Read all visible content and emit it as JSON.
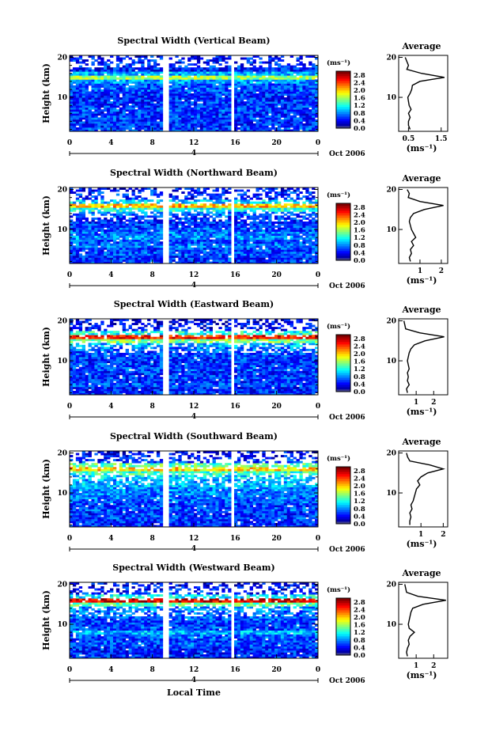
{
  "figure": {
    "xlabel": "Local Time",
    "date_label": "Oct 2006",
    "day_label": "4",
    "ylabel": "Height (km)",
    "avg_title": "Average",
    "unit_label": "(ms⁻¹)"
  },
  "chart_data": [
    {
      "type": "heatmap",
      "title": "Spectral Width (Vertical Beam)",
      "xlabel": "Local Time",
      "ylabel": "Height (km)",
      "x_ticks": [
        "0",
        "4",
        "8",
        "12",
        "16",
        "20",
        "0"
      ],
      "y_ticks": [
        "10",
        "20"
      ],
      "colorbar": {
        "label": "(ms⁻¹)",
        "ticks": [
          "0.0",
          "0.4",
          "0.8",
          "1.2",
          "1.6",
          "2.0",
          "2.4",
          "2.8"
        ],
        "range": [
          0,
          3.0
        ]
      },
      "profile": {
        "title": "Average",
        "xlabel": "(ms⁻¹)",
        "x_ticks": [
          "0.5",
          "1.5"
        ],
        "xlim": [
          0.2,
          1.7
        ],
        "heights": [
          2,
          3,
          4,
          5,
          6,
          7,
          8,
          9,
          10,
          11,
          12,
          13,
          14,
          15,
          16,
          17,
          18,
          19,
          20
        ],
        "values": [
          0.55,
          0.5,
          0.5,
          0.55,
          0.5,
          0.58,
          0.52,
          0.5,
          0.48,
          0.55,
          0.6,
          0.62,
          0.85,
          1.6,
          0.9,
          0.45,
          0.5,
          0.45,
          0.4
        ]
      }
    },
    {
      "type": "heatmap",
      "title": "Spectral Width (Northward Beam)",
      "xlabel": "Local Time",
      "ylabel": "Height (km)",
      "x_ticks": [
        "0",
        "4",
        "8",
        "12",
        "16",
        "20",
        "0"
      ],
      "y_ticks": [
        "10",
        "20"
      ],
      "colorbar": {
        "label": "(ms⁻¹)",
        "ticks": [
          "0.0",
          "0.4",
          "0.8",
          "1.2",
          "1.6",
          "2.0",
          "2.4",
          "2.8"
        ],
        "range": [
          0,
          3.0
        ]
      },
      "profile": {
        "title": "Average",
        "xlabel": "(ms⁻¹)",
        "x_ticks": [
          "1",
          "2"
        ],
        "xlim": [
          0,
          2.3
        ],
        "heights": [
          2,
          3,
          4,
          5,
          6,
          7,
          8,
          9,
          10,
          11,
          12,
          13,
          14,
          15,
          16,
          17,
          18,
          19,
          20
        ],
        "values": [
          0.55,
          0.5,
          0.6,
          0.55,
          0.7,
          0.6,
          0.8,
          0.7,
          0.6,
          0.55,
          0.5,
          0.55,
          0.7,
          1.2,
          2.1,
          1.0,
          0.45,
          0.5,
          0.4
        ]
      }
    },
    {
      "type": "heatmap",
      "title": "Spectral Width (Eastward Beam)",
      "xlabel": "Local Time",
      "ylabel": "Height (km)",
      "x_ticks": [
        "0",
        "4",
        "8",
        "12",
        "16",
        "20",
        "0"
      ],
      "y_ticks": [
        "10",
        "20"
      ],
      "colorbar": {
        "label": "(ms⁻¹)",
        "ticks": [
          "0.0",
          "0.4",
          "0.8",
          "1.2",
          "1.6",
          "2.0",
          "2.4",
          "2.8"
        ],
        "range": [
          0,
          3.0
        ]
      },
      "profile": {
        "title": "Average",
        "xlabel": "(ms⁻¹)",
        "x_ticks": [
          "1",
          "2"
        ],
        "xlim": [
          0,
          2.8
        ],
        "heights": [
          2,
          3,
          4,
          5,
          6,
          7,
          8,
          9,
          10,
          11,
          12,
          13,
          14,
          15,
          16,
          17,
          18,
          19,
          20
        ],
        "values": [
          0.5,
          0.45,
          0.6,
          0.5,
          0.55,
          0.5,
          0.6,
          0.55,
          0.5,
          0.55,
          0.6,
          0.7,
          0.9,
          1.5,
          2.6,
          1.2,
          0.4,
          0.35,
          0.3
        ]
      }
    },
    {
      "type": "heatmap",
      "title": "Spectral Width (Southward Beam)",
      "xlabel": "Local Time",
      "ylabel": "Height (km)",
      "x_ticks": [
        "0",
        "4",
        "8",
        "12",
        "16",
        "20",
        "0"
      ],
      "y_ticks": [
        "10",
        "20"
      ],
      "colorbar": {
        "label": "(ms⁻¹)",
        "ticks": [
          "0.0",
          "0.4",
          "0.8",
          "1.2",
          "1.6",
          "2.0",
          "2.4",
          "2.8"
        ],
        "range": [
          0,
          3.0
        ]
      },
      "profile": {
        "title": "Average",
        "xlabel": "(ms⁻¹)",
        "x_ticks": [
          "1",
          "2"
        ],
        "xlim": [
          0,
          2.2
        ],
        "heights": [
          2,
          3,
          4,
          5,
          6,
          7,
          8,
          9,
          10,
          11,
          12,
          13,
          14,
          15,
          16,
          17,
          18,
          19,
          20
        ],
        "values": [
          0.5,
          0.5,
          0.55,
          0.5,
          0.6,
          0.55,
          0.65,
          0.7,
          0.75,
          0.8,
          0.95,
          0.85,
          1.0,
          1.3,
          2.0,
          1.4,
          0.5,
          0.4,
          0.35
        ]
      }
    },
    {
      "type": "heatmap",
      "title": "Spectral Width (Westward Beam)",
      "xlabel": "Local Time",
      "ylabel": "Height (km)",
      "x_ticks": [
        "0",
        "4",
        "8",
        "12",
        "16",
        "20",
        "0"
      ],
      "y_ticks": [
        "10",
        "20"
      ],
      "colorbar": {
        "label": "(ms⁻¹)",
        "ticks": [
          "0.0",
          "0.4",
          "0.8",
          "1.2",
          "1.6",
          "2.0",
          "2.4",
          "2.8"
        ],
        "range": [
          0,
          3.0
        ]
      },
      "profile": {
        "title": "Average",
        "xlabel": "(ms⁻¹)",
        "x_ticks": [
          "1",
          "2"
        ],
        "xlim": [
          0,
          2.8
        ],
        "heights": [
          2,
          3,
          4,
          5,
          6,
          7,
          8,
          9,
          10,
          11,
          12,
          13,
          14,
          15,
          16,
          17,
          18,
          19,
          20
        ],
        "values": [
          0.5,
          0.45,
          0.5,
          0.6,
          0.55,
          0.65,
          0.9,
          0.6,
          0.55,
          0.6,
          0.65,
          0.7,
          0.8,
          1.4,
          2.7,
          1.1,
          0.45,
          0.4,
          0.35
        ]
      }
    }
  ]
}
